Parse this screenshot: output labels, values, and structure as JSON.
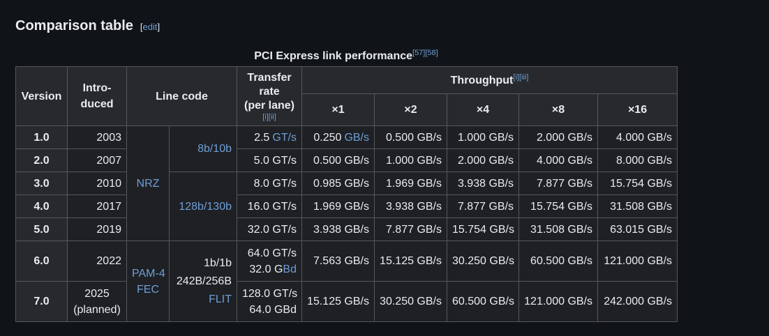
{
  "header": {
    "title": "Comparison table",
    "edit": "edit"
  },
  "table": {
    "caption": "PCI Express link performance",
    "caption_refs": [
      "[57]",
      "[58]"
    ],
    "columns": {
      "version": "Version",
      "introduced": [
        "Intro-",
        "duced"
      ],
      "line_code": "Line code",
      "transfer_rate": [
        "Transfer",
        "rate",
        "(per lane)"
      ],
      "transfer_rate_refs": [
        "[i]",
        "[ii]"
      ],
      "throughput": "Throughput",
      "throughput_refs": [
        "[i]",
        "[iii]"
      ],
      "lanes": [
        "×1",
        "×2",
        "×4",
        "×8",
        "×16"
      ]
    },
    "line_codes": {
      "nrz": "NRZ",
      "enc_8b10b": "8b/10b",
      "enc_128b130b": "128b/130b",
      "pam4_fec": [
        "PAM-4",
        "FEC"
      ],
      "flit": [
        "1b/1b",
        "242B/256B",
        "FLIT"
      ]
    },
    "rows": [
      {
        "version": "1.0",
        "introduced": [
          "2003"
        ],
        "transfer": [
          {
            "value": "2.5",
            "unit": "GT/s"
          }
        ],
        "throughput": [
          {
            "value": "0.250",
            "unit": "GB/s"
          },
          "0.500 GB/s",
          "1.000 GB/s",
          "2.000 GB/s",
          "4.000 GB/s"
        ]
      },
      {
        "version": "2.0",
        "introduced": [
          "2007"
        ],
        "transfer": [
          "5.0 GT/s"
        ],
        "throughput": [
          "0.500 GB/s",
          "1.000 GB/s",
          "2.000 GB/s",
          "4.000 GB/s",
          "8.000 GB/s"
        ]
      },
      {
        "version": "3.0",
        "introduced": [
          "2010"
        ],
        "transfer": [
          "8.0 GT/s"
        ],
        "throughput": [
          "0.985 GB/s",
          "1.969 GB/s",
          "3.938 GB/s",
          "7.877 GB/s",
          "15.754 GB/s"
        ]
      },
      {
        "version": "4.0",
        "introduced": [
          "2017"
        ],
        "transfer": [
          "16.0 GT/s"
        ],
        "throughput": [
          "1.969 GB/s",
          "3.938 GB/s",
          "7.877 GB/s",
          "15.754 GB/s",
          "31.508 GB/s"
        ]
      },
      {
        "version": "5.0",
        "introduced": [
          "2019"
        ],
        "transfer": [
          "32.0 GT/s"
        ],
        "throughput": [
          "3.938 GB/s",
          "7.877 GB/s",
          "15.754 GB/s",
          "31.508 GB/s",
          "63.015 GB/s"
        ]
      },
      {
        "version": "6.0",
        "introduced": [
          "2022"
        ],
        "transfer": [
          "64.0 GT/s",
          {
            "value": "32.0 G",
            "unit": "Bd"
          }
        ],
        "throughput": [
          "7.563 GB/s",
          "15.125 GB/s",
          "30.250 GB/s",
          "60.500 GB/s",
          "121.000 GB/s"
        ]
      },
      {
        "version": "7.0",
        "introduced": [
          "2025",
          "(planned)"
        ],
        "transfer": [
          "128.0 GT/s",
          "64.0 GBd"
        ],
        "throughput": [
          "15.125 GB/s",
          "30.250 GB/s",
          "60.500 GB/s",
          "121.000 GB/s",
          "242.000 GB/s"
        ]
      }
    ]
  }
}
